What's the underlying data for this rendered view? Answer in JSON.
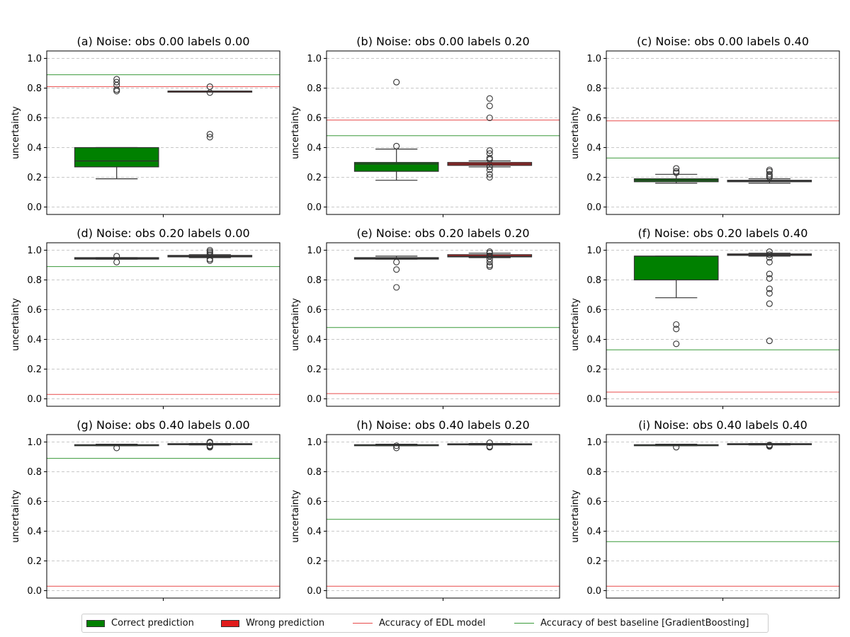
{
  "colors": {
    "correct": "#008000",
    "wrong": "#e11c1c",
    "edl_line": "#e84a4a",
    "baseline_line": "#3a9a3a",
    "grid": "#c8c8c8",
    "median": "#333333"
  },
  "chart_data": [
    {
      "type": "box",
      "title": "(a)  Noise: obs 0.00 labels 0.00",
      "ylabel": "uncertainty",
      "ylim": [
        -0.05,
        1.05
      ],
      "yticks": [
        "0.0",
        "0.2",
        "0.4",
        "0.6",
        "0.8",
        "1.0"
      ],
      "grid": true,
      "edl_accuracy": 0.81,
      "baseline_accuracy": 0.89,
      "boxes": [
        {
          "name": "Correct prediction",
          "q1": 0.27,
          "median": 0.31,
          "q3": 0.4,
          "whisker_low": 0.19,
          "whisker_high": 0.4,
          "outliers": [
            0.78,
            0.79,
            0.82,
            0.84,
            0.86
          ]
        },
        {
          "name": "Wrong prediction",
          "q1": 0.78,
          "median": 0.78,
          "q3": 0.78,
          "whisker_low": 0.78,
          "whisker_high": 0.78,
          "outliers": [
            0.47,
            0.49,
            0.77,
            0.81
          ]
        }
      ]
    },
    {
      "type": "box",
      "title": "(b)  Noise: obs 0.00 labels 0.20",
      "ylabel": "uncertainty",
      "ylim": [
        -0.05,
        1.05
      ],
      "yticks": [
        "0.0",
        "0.2",
        "0.4",
        "0.6",
        "0.8",
        "1.0"
      ],
      "grid": true,
      "edl_accuracy": 0.585,
      "baseline_accuracy": 0.48,
      "boxes": [
        {
          "name": "Correct prediction",
          "q1": 0.24,
          "median": 0.29,
          "q3": 0.3,
          "whisker_low": 0.18,
          "whisker_high": 0.39,
          "outliers": [
            0.41,
            0.84
          ]
        },
        {
          "name": "Wrong prediction",
          "q1": 0.28,
          "median": 0.29,
          "q3": 0.3,
          "whisker_low": 0.27,
          "whisker_high": 0.31,
          "outliers": [
            0.2,
            0.22,
            0.25,
            0.27,
            0.32,
            0.33,
            0.36,
            0.38,
            0.6,
            0.68,
            0.73
          ]
        }
      ]
    },
    {
      "type": "box",
      "title": "(c)  Noise: obs 0.00 labels 0.40",
      "ylabel": "uncertainty",
      "ylim": [
        -0.05,
        1.05
      ],
      "yticks": [
        "0.0",
        "0.2",
        "0.4",
        "0.6",
        "0.8",
        "1.0"
      ],
      "grid": true,
      "edl_accuracy": 0.58,
      "baseline_accuracy": 0.33,
      "boxes": [
        {
          "name": "Correct prediction",
          "q1": 0.17,
          "median": 0.18,
          "q3": 0.19,
          "whisker_low": 0.16,
          "whisker_high": 0.22,
          "outliers": [
            0.23,
            0.24,
            0.26
          ]
        },
        {
          "name": "Wrong prediction",
          "q1": 0.17,
          "median": 0.175,
          "q3": 0.18,
          "whisker_low": 0.16,
          "whisker_high": 0.19,
          "outliers": [
            0.2,
            0.21,
            0.22,
            0.24,
            0.25
          ]
        }
      ]
    },
    {
      "type": "box",
      "title": "(d)  Noise: obs 0.20 labels 0.00",
      "ylabel": "uncertainty",
      "ylim": [
        -0.05,
        1.05
      ],
      "yticks": [
        "0.0",
        "0.2",
        "0.4",
        "0.6",
        "0.8",
        "1.0"
      ],
      "grid": true,
      "edl_accuracy": 0.03,
      "baseline_accuracy": 0.89,
      "boxes": [
        {
          "name": "Correct prediction",
          "q1": 0.94,
          "median": 0.945,
          "q3": 0.95,
          "whisker_low": 0.94,
          "whisker_high": 0.95,
          "outliers": [
            0.92,
            0.96
          ]
        },
        {
          "name": "Wrong prediction",
          "q1": 0.955,
          "median": 0.96,
          "q3": 0.965,
          "whisker_low": 0.95,
          "whisker_high": 0.97,
          "outliers": [
            0.93,
            0.94,
            0.97,
            0.98,
            0.99,
            1.0
          ]
        }
      ]
    },
    {
      "type": "box",
      "title": "(e)  Noise: obs 0.20 labels 0.20",
      "ylabel": "uncertainty",
      "ylim": [
        -0.05,
        1.05
      ],
      "yticks": [
        "0.0",
        "0.2",
        "0.4",
        "0.6",
        "0.8",
        "1.0"
      ],
      "grid": true,
      "edl_accuracy": 0.035,
      "baseline_accuracy": 0.48,
      "boxes": [
        {
          "name": "Correct prediction",
          "q1": 0.94,
          "median": 0.945,
          "q3": 0.95,
          "whisker_low": 0.94,
          "whisker_high": 0.96,
          "outliers": [
            0.75,
            0.87,
            0.92
          ]
        },
        {
          "name": "Wrong prediction",
          "q1": 0.955,
          "median": 0.96,
          "q3": 0.97,
          "whisker_low": 0.95,
          "whisker_high": 0.98,
          "outliers": [
            0.89,
            0.9,
            0.92,
            0.94,
            0.96,
            0.98,
            0.99
          ]
        }
      ]
    },
    {
      "type": "box",
      "title": "(f)  Noise: obs 0.20 labels 0.40",
      "ylabel": "uncertainty",
      "ylim": [
        -0.05,
        1.05
      ],
      "yticks": [
        "0.0",
        "0.2",
        "0.4",
        "0.6",
        "0.8",
        "1.0"
      ],
      "grid": true,
      "edl_accuracy": 0.045,
      "baseline_accuracy": 0.33,
      "boxes": [
        {
          "name": "Correct prediction",
          "q1": 0.8,
          "median": 0.96,
          "q3": 0.96,
          "whisker_low": 0.68,
          "whisker_high": 0.96,
          "outliers": [
            0.37,
            0.47,
            0.5
          ]
        },
        {
          "name": "Wrong prediction",
          "q1": 0.965,
          "median": 0.97,
          "q3": 0.975,
          "whisker_low": 0.96,
          "whisker_high": 0.98,
          "outliers": [
            0.39,
            0.64,
            0.71,
            0.74,
            0.81,
            0.84,
            0.92,
            0.95,
            0.97,
            0.99
          ]
        }
      ]
    },
    {
      "type": "box",
      "title": "(g)  Noise: obs 0.40 labels 0.00",
      "ylabel": "uncertainty",
      "ylim": [
        -0.05,
        1.05
      ],
      "yticks": [
        "0.0",
        "0.2",
        "0.4",
        "0.6",
        "0.8",
        "1.0"
      ],
      "grid": true,
      "edl_accuracy": 0.03,
      "baseline_accuracy": 0.89,
      "boxes": [
        {
          "name": "Correct prediction",
          "q1": 0.978,
          "median": 0.98,
          "q3": 0.982,
          "whisker_low": 0.975,
          "whisker_high": 0.985,
          "outliers": [
            0.96
          ]
        },
        {
          "name": "Wrong prediction",
          "q1": 0.983,
          "median": 0.986,
          "q3": 0.989,
          "whisker_low": 0.98,
          "whisker_high": 0.99,
          "outliers": [
            0.965,
            0.97,
            0.975,
            0.995,
            1.0
          ]
        }
      ]
    },
    {
      "type": "box",
      "title": "(h)  Noise: obs 0.40 labels 0.20",
      "ylabel": "uncertainty",
      "ylim": [
        -0.05,
        1.05
      ],
      "yticks": [
        "0.0",
        "0.2",
        "0.4",
        "0.6",
        "0.8",
        "1.0"
      ],
      "grid": true,
      "edl_accuracy": 0.03,
      "baseline_accuracy": 0.48,
      "boxes": [
        {
          "name": "Correct prediction",
          "q1": 0.978,
          "median": 0.98,
          "q3": 0.982,
          "whisker_low": 0.975,
          "whisker_high": 0.985,
          "outliers": [
            0.96,
            0.975
          ]
        },
        {
          "name": "Wrong prediction",
          "q1": 0.982,
          "median": 0.985,
          "q3": 0.988,
          "whisker_low": 0.98,
          "whisker_high": 0.99,
          "outliers": [
            0.965,
            0.97,
            0.995
          ]
        }
      ]
    },
    {
      "type": "box",
      "title": "(i)  Noise: obs 0.40 labels 0.40",
      "ylabel": "uncertainty",
      "ylim": [
        -0.05,
        1.05
      ],
      "yticks": [
        "0.0",
        "0.2",
        "0.4",
        "0.6",
        "0.8",
        "1.0"
      ],
      "grid": true,
      "edl_accuracy": 0.03,
      "baseline_accuracy": 0.33,
      "boxes": [
        {
          "name": "Correct prediction",
          "q1": 0.978,
          "median": 0.98,
          "q3": 0.982,
          "whisker_low": 0.975,
          "whisker_high": 0.985,
          "outliers": [
            0.965
          ]
        },
        {
          "name": "Wrong prediction",
          "q1": 0.983,
          "median": 0.986,
          "q3": 0.989,
          "whisker_low": 0.98,
          "whisker_high": 0.99,
          "outliers": [
            0.97,
            0.975,
            0.98
          ]
        }
      ]
    }
  ],
  "legend": {
    "correct": "Correct prediction",
    "wrong": "Wrong prediction",
    "edl": "Accuracy of EDL model",
    "baseline": "Accuracy of best baseline [GradientBoosting]"
  }
}
